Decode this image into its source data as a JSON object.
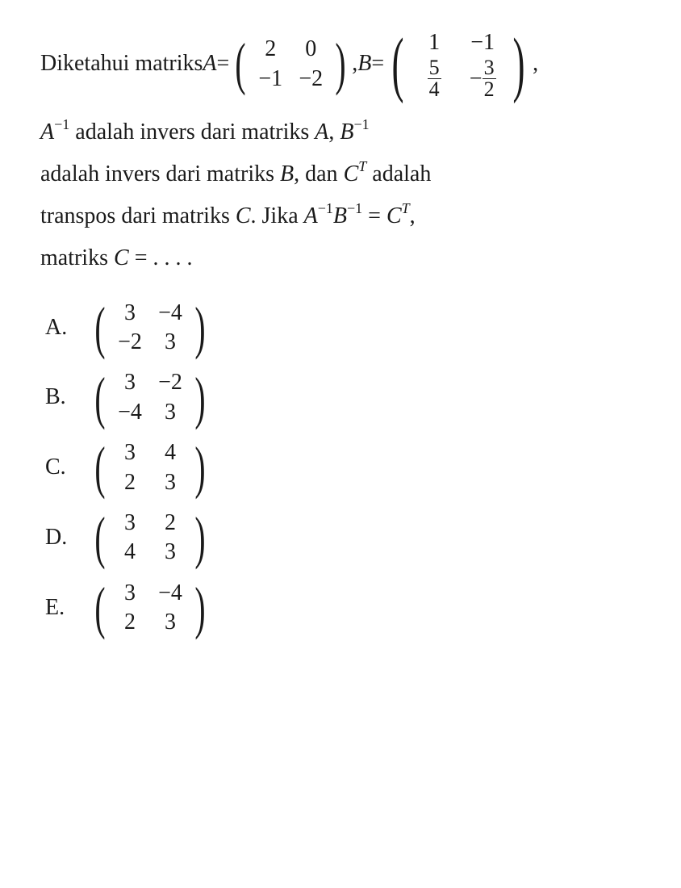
{
  "background_color": "#ffffff",
  "text_color": "#1a1a1a",
  "font_family": "Times New Roman",
  "base_fontsize": 28,
  "problem": {
    "intro_prefix": "Diketahui matriks ",
    "A_label": "A",
    "B_label": "B",
    "equals": " = ",
    "comma": ", ",
    "matrixA": {
      "rows": [
        [
          "2",
          "0"
        ],
        [
          "−1",
          "−2"
        ]
      ]
    },
    "matrixB": {
      "rows": [
        [
          "1",
          "−1"
        ],
        [
          {
            "frac": [
              "5",
              "4"
            ]
          },
          {
            "neg_frac": [
              "3",
              "2"
            ]
          }
        ]
      ]
    },
    "body_line1_a": "A",
    "body_line1_exp": "−1",
    "body_line1_b": " adalah invers dari matriks ",
    "body_line1_c": "A",
    "body_line1_d": ", ",
    "body_line1_e": "B",
    "body_line2_a": "adalah invers dari matriks ",
    "body_line2_b": "B",
    "body_line2_c": ", dan ",
    "body_line2_d": "C",
    "body_line2_exp": "T",
    "body_line2_e": " adalah",
    "body_line3_a": "transpos dari matriks ",
    "body_line3_b": "C",
    "body_line3_c": ". Jika ",
    "body_line3_d": "A",
    "body_line3_e": "B",
    "body_line3_f": " = ",
    "body_line3_g": "C",
    "body_line4_a": "matriks ",
    "body_line4_b": "C",
    "body_line4_c": " = . . . ."
  },
  "options": [
    {
      "label": "A.",
      "matrix": [
        [
          "3",
          "−4"
        ],
        [
          "−2",
          "3"
        ]
      ]
    },
    {
      "label": "B.",
      "matrix": [
        [
          "3",
          "−2"
        ],
        [
          "−4",
          "3"
        ]
      ]
    },
    {
      "label": "C.",
      "matrix": [
        [
          "3",
          "4"
        ],
        [
          "2",
          "3"
        ]
      ]
    },
    {
      "label": "D.",
      "matrix": [
        [
          "3",
          "2"
        ],
        [
          "4",
          "3"
        ]
      ]
    },
    {
      "label": "E.",
      "matrix": [
        [
          "3",
          "−4"
        ],
        [
          "2",
          "3"
        ]
      ]
    }
  ]
}
